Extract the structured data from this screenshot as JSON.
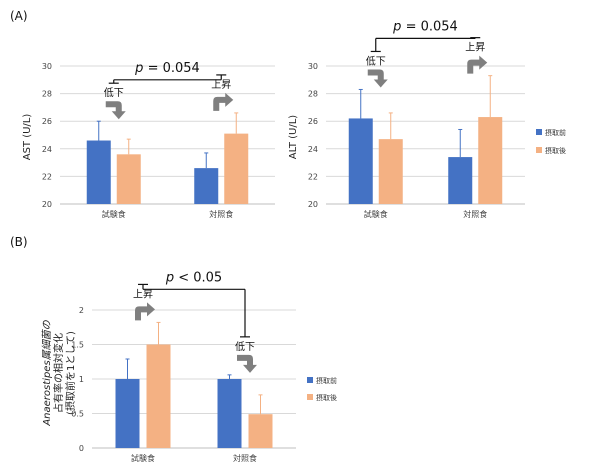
{
  "colors": {
    "before": "#4472C4",
    "after": "#F4B183",
    "grid": "#d9d9d9",
    "axis": "#bfbfbf",
    "bracket": "#111111",
    "arrow": "#7f7f7f"
  },
  "legend": {
    "before": "摂取前",
    "after": "摂取後"
  },
  "icons": {
    "trend_arrow": "curved-arrow-icon"
  },
  "chart_data": [
    {
      "panel_label": "(A)",
      "type": "bar",
      "ylabel": "AST (U/L)",
      "ylim": [
        20,
        30
      ],
      "yticks": [
        "20",
        "22",
        "24",
        "26",
        "28",
        "30"
      ],
      "categories": [
        "試験食",
        "対照食"
      ],
      "series": [
        {
          "name": "摂取前",
          "values": [
            24.6,
            22.6
          ],
          "errors": [
            1.4,
            1.1
          ]
        },
        {
          "name": "摂取後",
          "values": [
            23.6,
            25.1
          ],
          "errors": [
            1.1,
            1.5
          ]
        }
      ],
      "annotations": [
        "低下",
        "上昇"
      ],
      "p_text": "p = 0.054",
      "bracket_top": 29.0
    },
    {
      "type": "bar",
      "ylabel": "ALT (U/L)",
      "ylim": [
        20,
        30
      ],
      "yticks": [
        "20",
        "22",
        "24",
        "26",
        "28",
        "30"
      ],
      "categories": [
        "試験食",
        "対照食"
      ],
      "series": [
        {
          "name": "摂取前",
          "values": [
            26.2,
            23.4
          ],
          "errors": [
            2.1,
            2.0
          ]
        },
        {
          "name": "摂取後",
          "values": [
            24.7,
            26.3
          ],
          "errors": [
            1.9,
            3.0
          ]
        }
      ],
      "annotations": [
        "低下",
        "上昇"
      ],
      "p_text": "p = 0.054",
      "bracket_top": 32.0
    },
    {
      "panel_label": "(B)",
      "type": "bar",
      "ylabel_lines": [
        "Anaerostipes属細菌の",
        "占有率の相対変化",
        "(摂取前を1として)"
      ],
      "ylim": [
        0,
        2
      ],
      "yticks": [
        "0",
        "0.5",
        "1",
        "1.5",
        "2"
      ],
      "categories": [
        "試験食",
        "対照食"
      ],
      "series": [
        {
          "name": "摂取前",
          "values": [
            1.0,
            1.0
          ],
          "errors": [
            0.29,
            0.06
          ]
        },
        {
          "name": "摂取後",
          "values": [
            1.5,
            0.49
          ],
          "errors": [
            0.32,
            0.28
          ]
        }
      ],
      "annotations": [
        "上昇",
        "低下"
      ],
      "p_text": "p < 0.05",
      "bracket_top": 2.3
    }
  ]
}
